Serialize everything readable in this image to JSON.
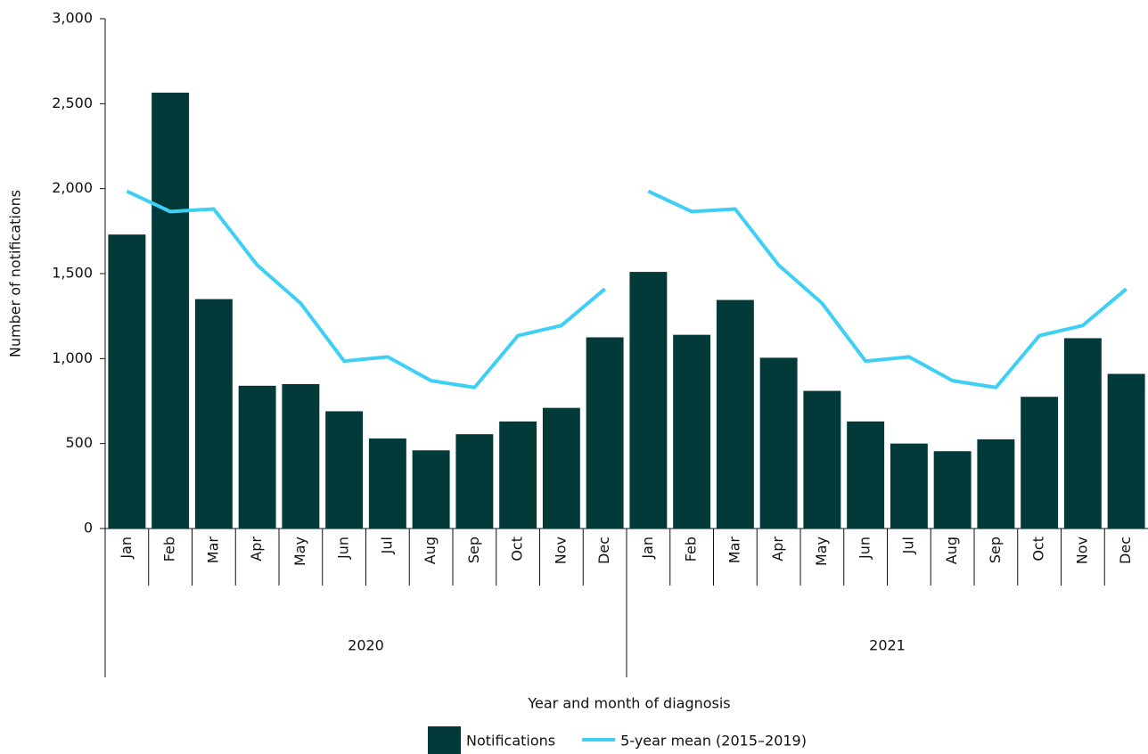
{
  "chart_data": {
    "type": "bar_line",
    "categories": [
      "Jan",
      "Feb",
      "Mar",
      "Apr",
      "May",
      "Jun",
      "Jul",
      "Aug",
      "Sep",
      "Oct",
      "Nov",
      "Dec",
      "Jan",
      "Feb",
      "Mar",
      "Apr",
      "May",
      "Jun",
      "Jul",
      "Aug",
      "Sep",
      "Oct",
      "Nov",
      "Dec"
    ],
    "groups": [
      "2020",
      "2021"
    ],
    "x_label": "Year and month of diagnosis",
    "y_label": "Number of notifications",
    "series": [
      {
        "name": "Notifications",
        "type": "bar",
        "color": "#023a3a",
        "values": [
          1730,
          2565,
          1350,
          840,
          850,
          690,
          530,
          460,
          555,
          630,
          710,
          1125,
          1510,
          1140,
          1345,
          1005,
          810,
          630,
          500,
          455,
          525,
          775,
          1120,
          910
        ]
      },
      {
        "name": "5-year mean (2015–2019)",
        "type": "line",
        "color": "#3dcff5",
        "values": [
          1985,
          1865,
          1880,
          1550,
          1325,
          985,
          1010,
          870,
          830,
          1135,
          1195,
          1410,
          1985,
          1865,
          1880,
          1550,
          1325,
          985,
          1010,
          870,
          830,
          1135,
          1195,
          1410
        ]
      }
    ],
    "ylim": [
      0,
      3000
    ],
    "yticks": [
      0,
      {
        "value": 500,
        "label": "500"
      },
      {
        "value": 1000,
        "label": "1,000"
      },
      {
        "value": 1500,
        "label": "1,500"
      },
      {
        "value": 2000,
        "label": "2,000"
      },
      {
        "value": 2500,
        "label": "2,500"
      },
      {
        "value": 3000,
        "label": "3,000"
      }
    ],
    "grid": false
  }
}
